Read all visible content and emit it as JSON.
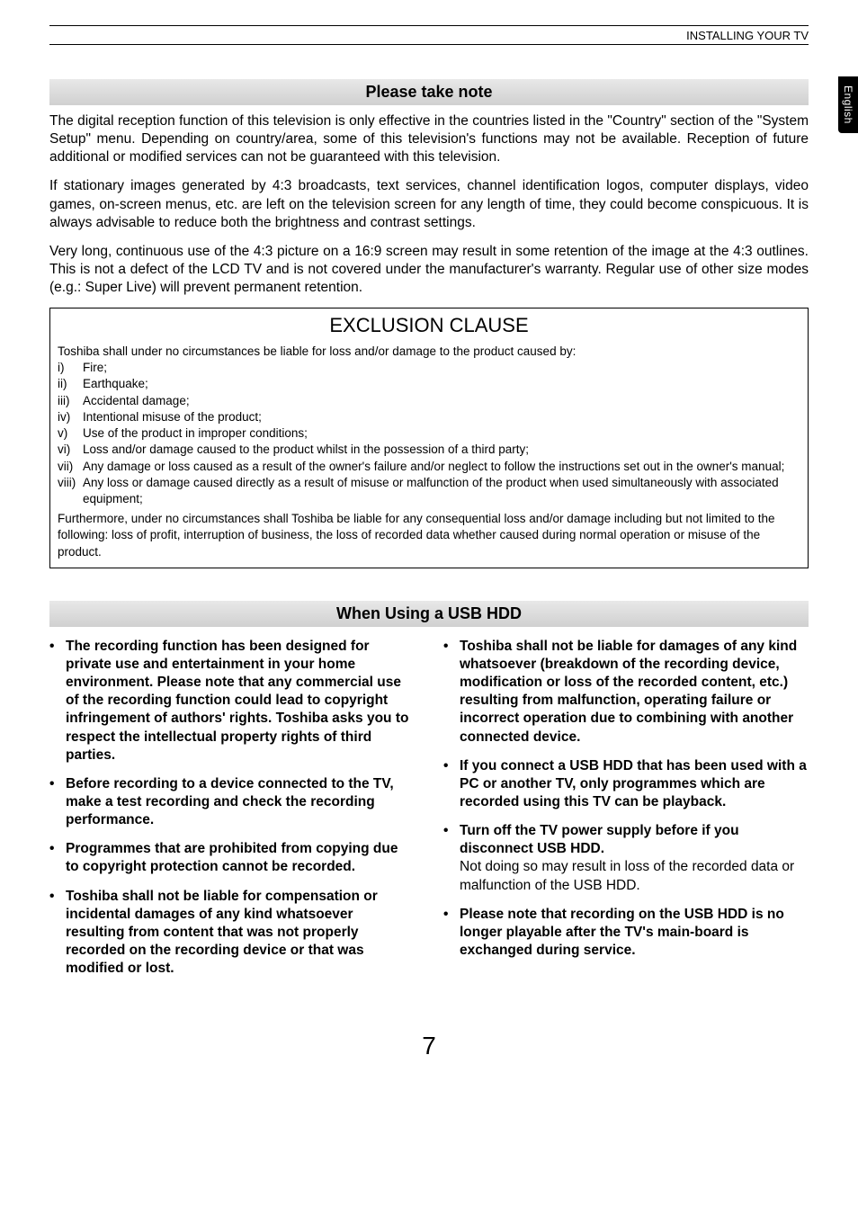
{
  "header": {
    "breadcrumb": "INSTALLING YOUR TV"
  },
  "sideTab": "English",
  "section1": {
    "title": "Please take note",
    "p1": "The digital reception function of this television is only effective in the countries listed in the \"Country\" section of the \"System Setup\" menu. Depending on country/area, some of this television's functions may not be available. Reception of future additional or modified services can not be guaranteed with this television.",
    "p2": "If stationary images generated by 4:3 broadcasts, text services, channel identification logos, computer displays, video games, on-screen menus, etc. are left on the television screen for any length of time, they could become conspicuous. It is always advisable to reduce both the brightness and contrast settings.",
    "p3": "Very long, continuous use of the 4:3 picture on a 16:9 screen may result in some retention of the image at the 4:3 outlines. This is not a defect of the LCD TV and is not covered under the manufacturer's warranty. Regular use of other size modes (e.g.: Super Live) will prevent permanent retention."
  },
  "exclusion": {
    "title": "EXCLUSION CLAUSE",
    "intro": "Toshiba shall under no circumstances be liable for loss and/or damage to the product caused by:",
    "items": [
      {
        "num": "i)",
        "text": "Fire;"
      },
      {
        "num": "ii)",
        "text": "Earthquake;"
      },
      {
        "num": "iii)",
        "text": "Accidental damage;"
      },
      {
        "num": "iv)",
        "text": "Intentional misuse of the product;"
      },
      {
        "num": "v)",
        "text": "Use of the product in improper conditions;"
      },
      {
        "num": "vi)",
        "text": "Loss and/or damage caused to the product whilst in the possession of a third party;"
      },
      {
        "num": "vii)",
        "text": "Any damage or loss caused as a result of the owner's failure and/or neglect to follow the instructions set out in the owner's manual;"
      },
      {
        "num": "viii)",
        "text": "Any loss or damage caused directly as a result of misuse or malfunction of the product when used simultaneously with associated equipment;"
      }
    ],
    "footer": "Furthermore, under no circumstances shall Toshiba be liable for any consequential loss and/or damage including but not limited to the following: loss of profit, interruption of business, the loss of recorded data whether caused during normal operation or misuse of the product."
  },
  "section2": {
    "title": "When Using a USB HDD",
    "left": [
      {
        "text": "The recording function has been designed for private use and entertainment in your home environment. Please note that any commercial use of the recording function could lead to copyright infringement of authors' rights. Toshiba asks you to respect the intellectual property rights of third parties."
      },
      {
        "text": "Before recording to a device connected to the TV, make a test recording and check the recording performance."
      },
      {
        "text": "Programmes that are prohibited from copying due to copyright protection cannot be recorded."
      },
      {
        "text": "Toshiba shall not be liable for compensation or incidental damages of any kind whatsoever resulting from content that was not properly recorded on the recording device or that was modified or lost."
      }
    ],
    "right": [
      {
        "text": "Toshiba shall not be liable for damages of any kind whatsoever (breakdown of the recording device, modification or loss of the recorded content, etc.) resulting from malfunction, operating failure or incorrect operation due to combining with another connected device."
      },
      {
        "text": "If you connect a USB HDD that has been used with a PC or another TV, only programmes which are recorded using this TV can be playback."
      },
      {
        "text": "Turn off the TV power supply before if you disconnect USB HDD.",
        "note": "Not doing so may result in loss of the recorded data or malfunction of the USB HDD."
      },
      {
        "text": "Please note that recording on the USB HDD is no longer playable after the TV's main-board is exchanged during service."
      }
    ]
  },
  "pageNumber": "7"
}
